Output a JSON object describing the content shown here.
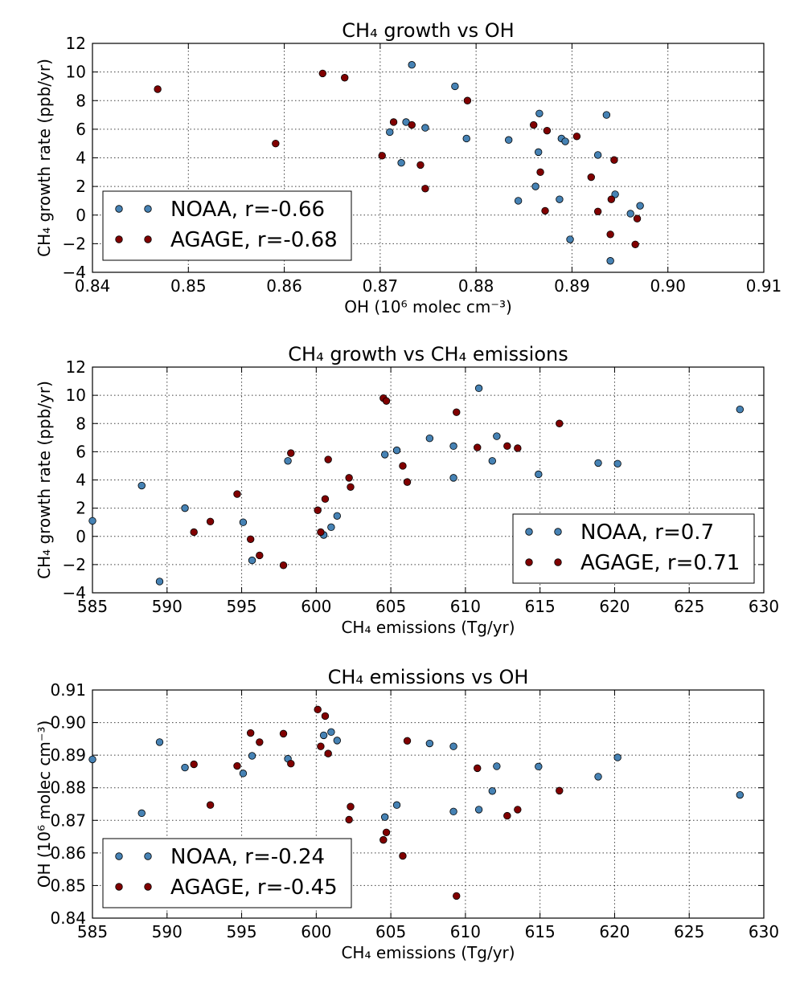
{
  "colors": {
    "NOAA": "#4682b4",
    "AGAGE": "#800000"
  },
  "chart_data": [
    {
      "type": "scatter",
      "title": "CH₄ growth vs OH",
      "xlabel": "OH (10⁶ molec cm⁻³)",
      "ylabel": "CH₄ growth rate (ppb/yr)",
      "xlim": [
        0.84,
        0.91
      ],
      "ylim": [
        -4,
        12
      ],
      "xticks": [
        "0.84",
        "0.85",
        "0.86",
        "0.87",
        "0.88",
        "0.89",
        "0.90",
        "0.91"
      ],
      "yticks": [
        "−4",
        "−2",
        "0",
        "2",
        "4",
        "6",
        "8",
        "10",
        "12"
      ],
      "grid": true,
      "legend_position": "lower-left",
      "series": [
        {
          "name": "NOAA, r=-0.66",
          "color": "#4682b4",
          "x": [
            0.8733,
            0.8778,
            0.8936,
            0.8866,
            0.8727,
            0.8747,
            0.871,
            0.879,
            0.8834,
            0.8889,
            0.8893,
            0.8865,
            0.8927,
            0.8722,
            0.8862,
            0.8945,
            0.8844,
            0.8887,
            0.8971,
            0.8961,
            0.8898,
            0.894
          ],
          "y": [
            10.5,
            9.0,
            7.0,
            7.1,
            6.5,
            6.1,
            5.8,
            5.35,
            5.25,
            5.35,
            5.15,
            4.4,
            4.2,
            3.65,
            2.0,
            1.45,
            1.0,
            1.1,
            0.65,
            0.1,
            -1.7,
            -3.2
          ]
        },
        {
          "name": "AGAGE, r=-0.68",
          "color": "#800000",
          "x": [
            0.8468,
            0.864,
            0.8663,
            0.8791,
            0.8714,
            0.8733,
            0.886,
            0.8874,
            0.8905,
            0.8591,
            0.8702,
            0.8742,
            0.8944,
            0.8867,
            0.892,
            0.8747,
            0.8941,
            0.8872,
            0.8927,
            0.8968,
            0.894,
            0.8966
          ],
          "y": [
            8.8,
            9.9,
            9.6,
            8.0,
            6.5,
            6.3,
            6.3,
            5.9,
            5.5,
            5.0,
            4.15,
            3.5,
            3.85,
            3.0,
            2.65,
            1.85,
            1.1,
            0.3,
            0.25,
            -0.25,
            -1.35,
            -2.05
          ]
        }
      ]
    },
    {
      "type": "scatter",
      "title": "CH₄ growth vs CH₄ emissions",
      "xlabel": "CH₄ emissions (Tg/yr)",
      "ylabel": "CH₄ growth rate (ppb/yr)",
      "xlim": [
        585,
        630
      ],
      "ylim": [
        -4,
        12
      ],
      "xticks": [
        "585",
        "590",
        "595",
        "600",
        "605",
        "610",
        "615",
        "620",
        "625",
        "630"
      ],
      "yticks": [
        "−4",
        "−2",
        "0",
        "2",
        "4",
        "6",
        "8",
        "10",
        "12"
      ],
      "grid": true,
      "legend_position": "lower-right",
      "series": [
        {
          "name": "NOAA, r=0.7",
          "color": "#4682b4",
          "x": [
            585.0,
            588.3,
            589.5,
            591.2,
            595.1,
            595.7,
            598.1,
            600.5,
            601.0,
            601.4,
            604.6,
            605.4,
            607.6,
            609.2,
            609.2,
            610.9,
            611.8,
            612.1,
            614.9,
            618.9,
            620.2,
            628.4
          ],
          "y": [
            1.1,
            3.6,
            -3.2,
            2.0,
            1.0,
            -1.7,
            5.35,
            0.1,
            0.65,
            1.45,
            5.8,
            6.1,
            6.95,
            6.4,
            4.15,
            10.5,
            5.35,
            7.1,
            4.4,
            5.2,
            5.15,
            9.0
          ]
        },
        {
          "name": "AGAGE, r=0.71",
          "color": "#800000",
          "x": [
            591.8,
            592.9,
            594.7,
            595.6,
            596.2,
            597.8,
            598.3,
            600.1,
            600.3,
            600.6,
            600.8,
            602.2,
            602.3,
            604.5,
            604.7,
            605.8,
            606.1,
            609.4,
            610.8,
            612.8,
            613.5,
            616.3
          ],
          "y": [
            0.3,
            1.05,
            3.0,
            -0.2,
            -1.35,
            -2.05,
            5.9,
            1.85,
            0.3,
            2.65,
            5.45,
            4.15,
            3.5,
            9.8,
            9.6,
            5.0,
            3.85,
            8.8,
            6.3,
            6.4,
            6.25,
            8.0
          ]
        }
      ]
    },
    {
      "type": "scatter",
      "title": "CH₄ emissions vs OH",
      "xlabel": "CH₄ emissions (Tg/yr)",
      "ylabel": "OH (10⁶ molec cm⁻³)",
      "xlim": [
        585,
        630
      ],
      "ylim": [
        0.84,
        0.91
      ],
      "xticks": [
        "585",
        "590",
        "595",
        "600",
        "605",
        "610",
        "615",
        "620",
        "625",
        "630"
      ],
      "yticks": [
        "0.84",
        "0.85",
        "0.86",
        "0.87",
        "0.88",
        "0.89",
        "0.90",
        "0.91"
      ],
      "grid": true,
      "legend_position": "lower-left",
      "series": [
        {
          "name": "NOAA, r=-0.24",
          "color": "#4682b4",
          "x": [
            585.0,
            588.3,
            589.5,
            591.2,
            595.1,
            595.7,
            598.1,
            600.5,
            601.0,
            601.4,
            604.6,
            605.4,
            607.6,
            609.2,
            609.2,
            610.9,
            611.8,
            612.1,
            614.9,
            618.9,
            620.2,
            628.4
          ],
          "y": [
            0.8887,
            0.8722,
            0.894,
            0.8862,
            0.8844,
            0.8898,
            0.8889,
            0.8961,
            0.8971,
            0.8945,
            0.871,
            0.8747,
            0.8936,
            0.8927,
            0.8727,
            0.8733,
            0.879,
            0.8866,
            0.8865,
            0.8834,
            0.8893,
            0.8778
          ]
        },
        {
          "name": "AGAGE, r=-0.45",
          "color": "#800000",
          "x": [
            591.8,
            592.9,
            594.7,
            595.6,
            596.2,
            597.8,
            598.3,
            600.1,
            600.3,
            600.6,
            600.8,
            602.2,
            602.3,
            604.5,
            604.7,
            605.8,
            606.1,
            609.4,
            610.8,
            612.8,
            613.5,
            616.3
          ],
          "y": [
            0.8872,
            0.8747,
            0.8867,
            0.8968,
            0.894,
            0.8966,
            0.8874,
            0.904,
            0.8927,
            0.902,
            0.8905,
            0.8702,
            0.8742,
            0.864,
            0.8663,
            0.8591,
            0.8944,
            0.8468,
            0.886,
            0.8714,
            0.8733,
            0.8791
          ]
        }
      ]
    }
  ]
}
